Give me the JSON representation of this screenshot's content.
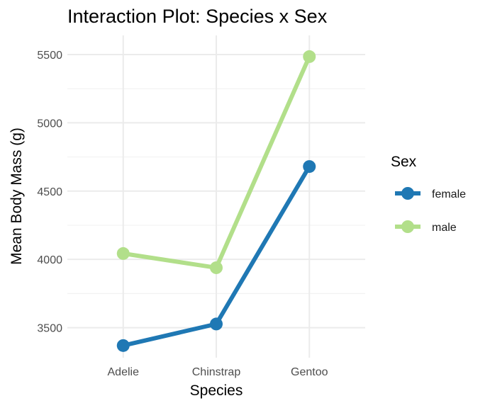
{
  "chart_data": {
    "type": "line",
    "title": "Interaction Plot: Species x Sex",
    "xlabel": "Species",
    "ylabel": "Mean Body Mass (g)",
    "categories": [
      "Adelie",
      "Chinstrap",
      "Gentoo"
    ],
    "ylim": [
      3280,
      5640
    ],
    "yticks": [
      3500,
      4000,
      4500,
      5000,
      5500
    ],
    "grid": true,
    "legend": {
      "title": "Sex",
      "placement": "right"
    },
    "series": [
      {
        "name": "female",
        "color": "#1f78b4",
        "values": [
          3369,
          3527,
          4680
        ],
        "error": [
          17,
          16,
          18
        ]
      },
      {
        "name": "male",
        "color": "#b2df8a",
        "values": [
          4043,
          3939,
          5485
        ],
        "error": [
          17,
          17,
          18
        ]
      }
    ]
  }
}
